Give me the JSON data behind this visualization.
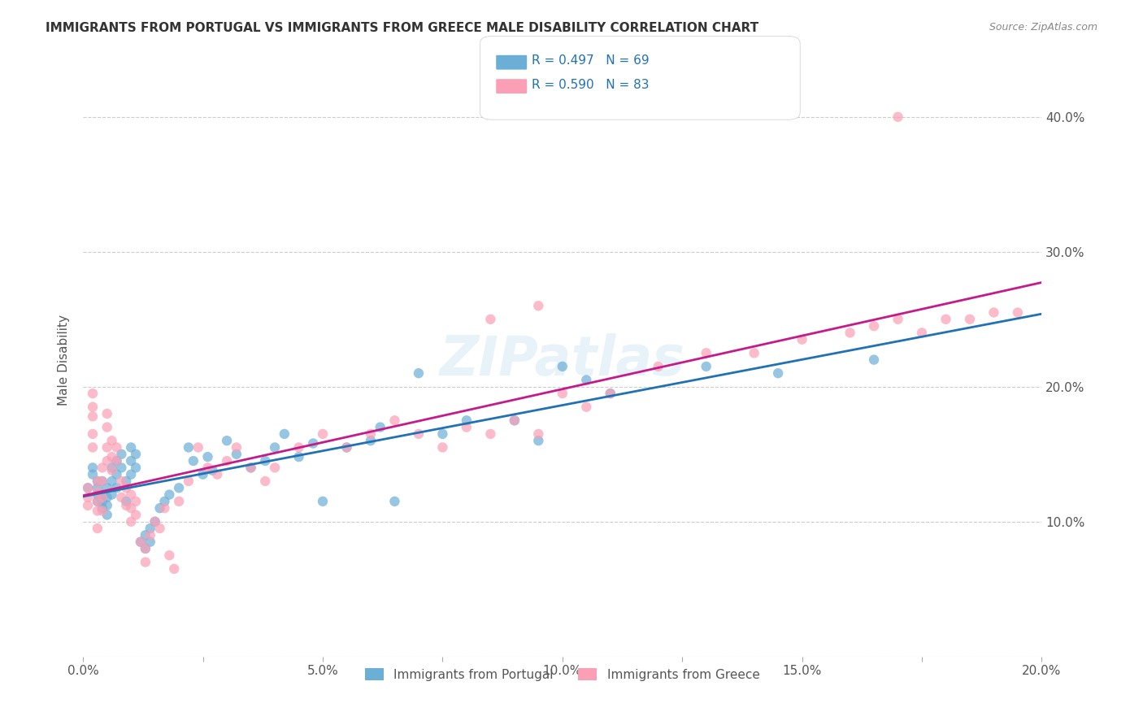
{
  "title": "IMMIGRANTS FROM PORTUGAL VS IMMIGRANTS FROM GREECE MALE DISABILITY CORRELATION CHART",
  "source": "Source: ZipAtlas.com",
  "xlabel_bottom": "",
  "ylabel": "Male Disability",
  "x_min": 0.0,
  "x_max": 0.2,
  "y_min": 0.0,
  "y_max": 0.44,
  "x_ticks": [
    0.0,
    0.025,
    0.05,
    0.075,
    0.1,
    0.125,
    0.15,
    0.175,
    0.2
  ],
  "x_tick_labels": [
    "0.0%",
    "",
    "5.0%",
    "",
    "10.0%",
    "",
    "15.0%",
    "",
    "20.0%"
  ],
  "y_ticks_right": [
    0.0,
    0.1,
    0.2,
    0.3,
    0.4
  ],
  "y_tick_labels_right": [
    "",
    "10.0%",
    "20.0%",
    "30.0%",
    "40.0%"
  ],
  "legend_label_blue": "Immigrants from Portugal",
  "legend_label_pink": "Immigrants from Greece",
  "legend_r_blue": "R = 0.497",
  "legend_n_blue": "N = 69",
  "legend_r_pink": "R = 0.590",
  "legend_n_pink": "N = 83",
  "color_blue": "#6baed6",
  "color_pink": "#fa9fb5",
  "color_blue_line": "#2171b5",
  "color_pink_line": "#c51b8a",
  "color_legend_text": "#2171b5",
  "watermark": "ZIPatlas",
  "blue_x": [
    0.001,
    0.002,
    0.002,
    0.003,
    0.003,
    0.003,
    0.003,
    0.004,
    0.004,
    0.004,
    0.004,
    0.005,
    0.005,
    0.005,
    0.005,
    0.006,
    0.006,
    0.006,
    0.007,
    0.007,
    0.007,
    0.008,
    0.008,
    0.009,
    0.009,
    0.01,
    0.01,
    0.01,
    0.011,
    0.011,
    0.012,
    0.013,
    0.013,
    0.014,
    0.014,
    0.015,
    0.016,
    0.017,
    0.018,
    0.02,
    0.022,
    0.023,
    0.025,
    0.026,
    0.027,
    0.03,
    0.032,
    0.035,
    0.038,
    0.04,
    0.042,
    0.045,
    0.048,
    0.05,
    0.055,
    0.06,
    0.062,
    0.065,
    0.07,
    0.075,
    0.08,
    0.09,
    0.095,
    0.1,
    0.105,
    0.11,
    0.13,
    0.145,
    0.165
  ],
  "blue_y": [
    0.125,
    0.135,
    0.14,
    0.13,
    0.125,
    0.12,
    0.115,
    0.13,
    0.12,
    0.115,
    0.11,
    0.125,
    0.118,
    0.112,
    0.105,
    0.14,
    0.13,
    0.12,
    0.145,
    0.135,
    0.125,
    0.15,
    0.14,
    0.13,
    0.115,
    0.155,
    0.145,
    0.135,
    0.15,
    0.14,
    0.085,
    0.09,
    0.08,
    0.095,
    0.085,
    0.1,
    0.11,
    0.115,
    0.12,
    0.125,
    0.155,
    0.145,
    0.135,
    0.148,
    0.138,
    0.16,
    0.15,
    0.14,
    0.145,
    0.155,
    0.165,
    0.148,
    0.158,
    0.115,
    0.155,
    0.16,
    0.17,
    0.115,
    0.21,
    0.165,
    0.175,
    0.175,
    0.16,
    0.215,
    0.205,
    0.195,
    0.215,
    0.21,
    0.22
  ],
  "pink_x": [
    0.001,
    0.001,
    0.001,
    0.002,
    0.002,
    0.002,
    0.002,
    0.002,
    0.003,
    0.003,
    0.003,
    0.003,
    0.003,
    0.004,
    0.004,
    0.004,
    0.004,
    0.005,
    0.005,
    0.005,
    0.005,
    0.006,
    0.006,
    0.006,
    0.007,
    0.007,
    0.008,
    0.008,
    0.009,
    0.009,
    0.01,
    0.01,
    0.01,
    0.011,
    0.011,
    0.012,
    0.013,
    0.013,
    0.014,
    0.015,
    0.016,
    0.017,
    0.018,
    0.019,
    0.02,
    0.022,
    0.024,
    0.026,
    0.028,
    0.03,
    0.032,
    0.035,
    0.038,
    0.04,
    0.045,
    0.05,
    0.055,
    0.06,
    0.065,
    0.07,
    0.075,
    0.08,
    0.085,
    0.09,
    0.095,
    0.1,
    0.105,
    0.11,
    0.12,
    0.13,
    0.14,
    0.15,
    0.16,
    0.165,
    0.17,
    0.175,
    0.18,
    0.185,
    0.19,
    0.195,
    0.085,
    0.095,
    0.17
  ],
  "pink_y": [
    0.125,
    0.118,
    0.112,
    0.195,
    0.185,
    0.178,
    0.165,
    0.155,
    0.13,
    0.122,
    0.115,
    0.108,
    0.095,
    0.14,
    0.13,
    0.118,
    0.108,
    0.18,
    0.17,
    0.155,
    0.145,
    0.16,
    0.148,
    0.138,
    0.155,
    0.145,
    0.13,
    0.118,
    0.125,
    0.112,
    0.12,
    0.11,
    0.1,
    0.115,
    0.105,
    0.085,
    0.08,
    0.07,
    0.09,
    0.1,
    0.095,
    0.11,
    0.075,
    0.065,
    0.115,
    0.13,
    0.155,
    0.14,
    0.135,
    0.145,
    0.155,
    0.14,
    0.13,
    0.14,
    0.155,
    0.165,
    0.155,
    0.165,
    0.175,
    0.165,
    0.155,
    0.17,
    0.165,
    0.175,
    0.165,
    0.195,
    0.185,
    0.195,
    0.215,
    0.225,
    0.225,
    0.235,
    0.24,
    0.245,
    0.25,
    0.24,
    0.25,
    0.25,
    0.255,
    0.255,
    0.25,
    0.26,
    0.4
  ]
}
